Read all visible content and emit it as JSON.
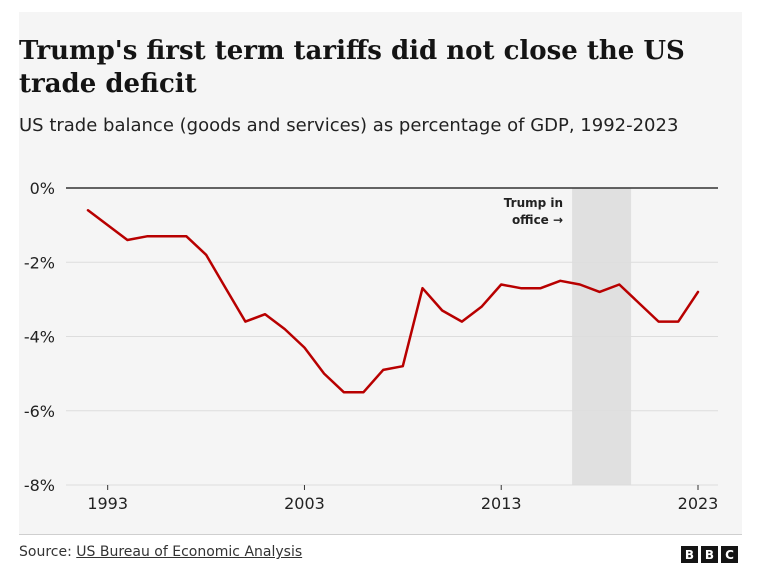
{
  "title": "Trump's first term tariffs did not close the US trade deficit",
  "subtitle": "US trade balance (goods and services) as percentage of GDP, 1992-2023",
  "source": {
    "prefix": "Source: ",
    "link": "US Bureau of Economic Analysis"
  },
  "logo": {
    "letters": [
      "B",
      "B",
      "C"
    ]
  },
  "colors": {
    "line": "#b80000",
    "shade": "#e0e0e0",
    "grid": "#dddddd",
    "zero_line": "#333333",
    "background": "#f5f5f5"
  },
  "chart_data": {
    "type": "line",
    "title": "Trump's first term tariffs did not close the US trade deficit",
    "subtitle": "US trade balance (goods and services) as percentage of GDP, 1992-2023",
    "x": [
      1992,
      1993,
      1994,
      1995,
      1996,
      1997,
      1998,
      1999,
      2000,
      2001,
      2002,
      2003,
      2004,
      2005,
      2006,
      2007,
      2008,
      2009,
      2010,
      2011,
      2012,
      2013,
      2014,
      2015,
      2016,
      2017,
      2018,
      2019,
      2020,
      2021,
      2022,
      2023
    ],
    "series": [
      {
        "values": [
          -0.6,
          -1.0,
          -1.4,
          -1.3,
          -1.3,
          -1.3,
          -1.8,
          -2.7,
          -3.6,
          -3.4,
          -3.8,
          -4.3,
          -5.0,
          -5.5,
          -5.5,
          -4.9,
          -4.8,
          -2.7,
          -3.3,
          -3.6,
          -3.2,
          -2.6,
          -2.7,
          -2.7,
          -2.5,
          -2.6,
          -2.8,
          -2.6,
          -3.1,
          -3.6,
          -3.6,
          -2.8
        ]
      }
    ],
    "ylim": [
      -8,
      0
    ],
    "xlim": [
      1992,
      2023
    ],
    "y_ticks": [
      0,
      -2,
      -4,
      -6,
      -8
    ],
    "y_tick_labels": [
      "0%",
      "-2%",
      "-4%",
      "-6%",
      "-8%"
    ],
    "x_ticks": [
      1993,
      2003,
      2013,
      2023
    ],
    "x_tick_labels": [
      "1993",
      "2003",
      "2013",
      "2023"
    ],
    "grid": "horizontal",
    "shaded_region": {
      "start": 2016.6,
      "end": 2019.6,
      "label_lines": [
        "Trump in",
        "office →"
      ]
    }
  }
}
